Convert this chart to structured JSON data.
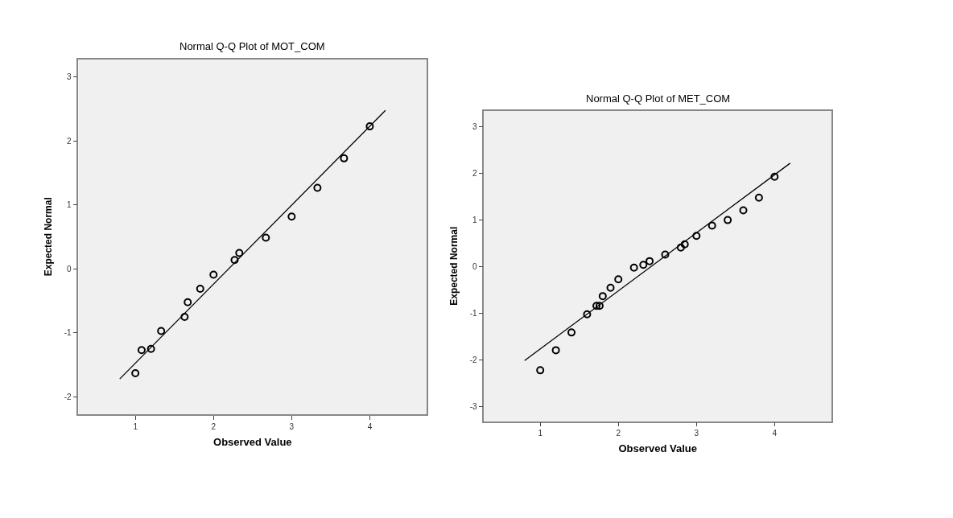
{
  "chart_data": [
    {
      "type": "scatter",
      "title": "Normal Q-Q Plot of MOT_COM",
      "xlabel": "Observed Value",
      "ylabel": "Expected Normal",
      "grid": false,
      "xlim": [
        0.27,
        4.73
      ],
      "xticks": [
        1,
        2,
        3,
        4
      ],
      "ylim": [
        -2.27,
        3.28
      ],
      "yticks": [
        -2,
        -1,
        0,
        1,
        2,
        3
      ],
      "series": [
        {
          "marker": "circle",
          "color": "#000000",
          "x": [
            1.0,
            1.08,
            1.2,
            1.33,
            1.63,
            1.67,
            1.83,
            2.0,
            2.27,
            2.33,
            2.67,
            3.0,
            3.33,
            3.67,
            4.0
          ],
          "values": [
            -1.63,
            -1.27,
            -1.25,
            -0.97,
            -0.75,
            -0.52,
            -0.31,
            -0.09,
            0.14,
            0.25,
            0.49,
            0.82,
            1.27,
            1.73,
            2.23
          ]
        },
        {
          "type": "line",
          "marker": "none",
          "color": "#000000",
          "x": [
            0.8,
            4.2
          ],
          "values": [
            -1.72,
            2.48
          ]
        }
      ]
    },
    {
      "type": "scatter",
      "title": "Normal Q-Q Plot of MET_COM",
      "xlabel": "Observed Value",
      "ylabel": "Expected Normal",
      "grid": false,
      "xlim": [
        0.28,
        4.73
      ],
      "xticks": [
        1,
        2,
        3,
        4
      ],
      "ylim": [
        -3.32,
        3.33
      ],
      "yticks": [
        -3,
        -2,
        -1,
        0,
        1,
        2,
        3
      ],
      "series": [
        {
          "marker": "circle",
          "color": "#000000",
          "x": [
            1.0,
            1.2,
            1.4,
            1.6,
            1.72,
            1.76,
            1.8,
            1.9,
            2.0,
            2.2,
            2.32,
            2.4,
            2.6,
            2.8,
            2.85,
            3.0,
            3.2,
            3.4,
            3.6,
            3.8,
            4.0
          ],
          "values": [
            -2.23,
            -1.8,
            -1.42,
            -1.03,
            -0.85,
            -0.85,
            -0.64,
            -0.46,
            -0.28,
            -0.03,
            0.03,
            0.11,
            0.25,
            0.4,
            0.47,
            0.65,
            0.87,
            0.99,
            1.2,
            1.47,
            1.92
          ]
        },
        {
          "type": "line",
          "marker": "none",
          "color": "#000000",
          "x": [
            0.8,
            4.2
          ],
          "values": [
            -2.02,
            2.21
          ]
        }
      ]
    }
  ]
}
